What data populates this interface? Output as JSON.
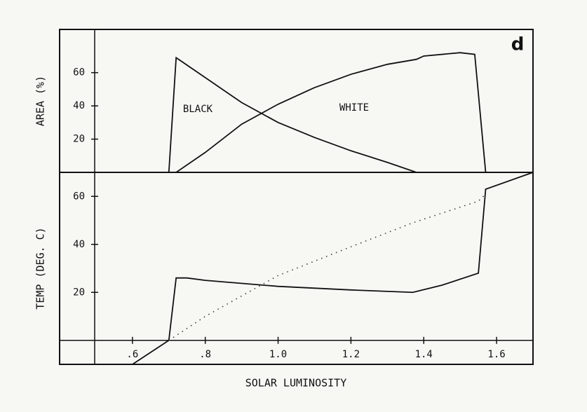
{
  "chart_data": [
    {
      "type": "line",
      "ylabel": "AREA (%)",
      "annotations": [
        "d",
        "BLACK",
        "WHITE"
      ],
      "x": [
        0.7,
        0.72,
        0.8,
        0.9,
        1.0,
        1.1,
        1.2,
        1.3,
        1.38,
        1.4,
        1.5,
        1.54,
        1.57
      ],
      "series": [
        {
          "name": "BLACK",
          "color": "#111111",
          "values": [
            0,
            69,
            57,
            42,
            30,
            21,
            13,
            6,
            0,
            null,
            null,
            null,
            null
          ]
        },
        {
          "name": "WHITE",
          "color": "#111111",
          "values": [
            null,
            0,
            12,
            29,
            41,
            51,
            59,
            65,
            68,
            70,
            72,
            71,
            0
          ]
        }
      ],
      "xlim": [
        0.4,
        1.7
      ],
      "ylim": [
        0,
        86
      ],
      "yticks": [
        20,
        40,
        60
      ]
    },
    {
      "type": "line",
      "ylabel": "TEMP (DEG. C)",
      "xlabel": "SOLAR LUMINOSITY",
      "x": [
        0.6,
        0.7,
        0.72,
        0.75,
        0.8,
        1.0,
        1.2,
        1.37,
        1.45,
        1.55,
        1.57,
        1.7
      ],
      "series": [
        {
          "color": "#111111",
          "dash": "solid",
          "values": [
            -10,
            0,
            26,
            26,
            25,
            22.5,
            21,
            20,
            23,
            28,
            63,
            70
          ]
        },
        {
          "color": "#333333",
          "dash": "dotted",
          "values": [
            null,
            0,
            2,
            5,
            10,
            27,
            39,
            49,
            53,
            58,
            61,
            null
          ]
        }
      ],
      "xlim": [
        0.4,
        1.7
      ],
      "ylim": [
        -10,
        70
      ],
      "yticks": [
        20,
        40,
        60
      ],
      "xticks": [
        {
          "value": 0.6,
          "label": ".6"
        },
        {
          "value": 0.8,
          "label": ".8"
        },
        {
          "value": 1.0,
          "label": "1.0"
        },
        1.2,
        1.4,
        1.6
      ]
    }
  ]
}
